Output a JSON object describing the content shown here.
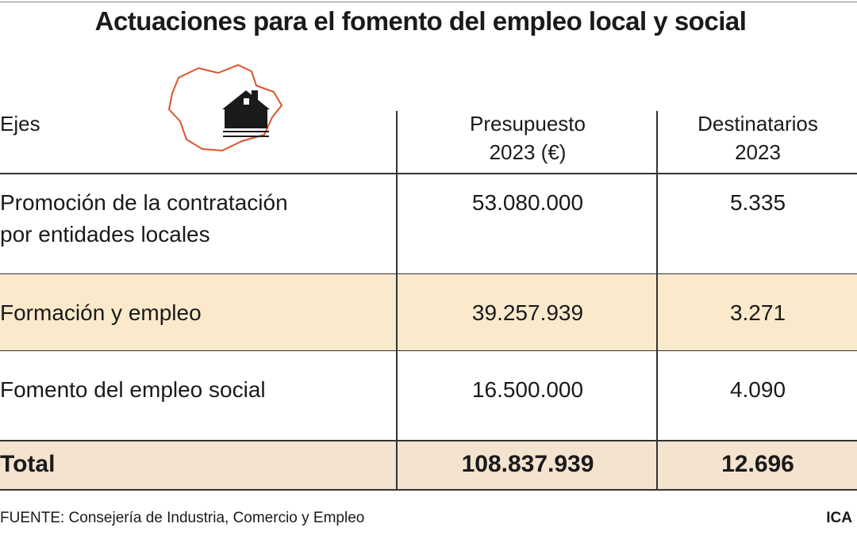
{
  "header": {
    "title": "Actuaciones para el fomento del empleo local y social"
  },
  "table": {
    "columns": [
      "Ejes",
      "Presupuesto\n2023 (€)",
      "Destinatarios\n2023"
    ],
    "rows": [
      [
        "Promoción de la contratación\npor entidades locales",
        "53.080.000",
        "5.335"
      ],
      [
        "Formación y empleo",
        "39.257.939",
        "3.271"
      ],
      [
        "Fomento del empleo social",
        "16.500.000",
        "4.090"
      ]
    ],
    "total": [
      "Total",
      "108.837.939",
      "12.696"
    ]
  },
  "footer": {
    "source": "FUENTE: Consejería de Industria, Comercio y Empleo",
    "credit": "ICA"
  }
}
